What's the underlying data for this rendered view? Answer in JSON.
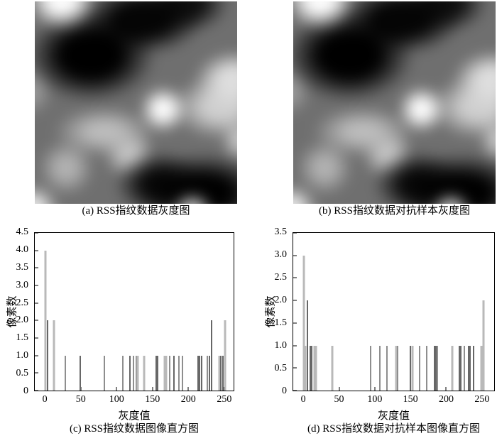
{
  "colors": {
    "background": "#ffffff",
    "axis": "#000000",
    "text": "#000000",
    "bar_light": "#b9b9b9",
    "bar_mid": "#8e8e8e",
    "bar_dark": "#676767"
  },
  "panels": {
    "a": {
      "type": "grayscale-image",
      "caption": "(a) RSS指纹数据灰度图"
    },
    "b": {
      "type": "grayscale-image",
      "caption": "(b) RSS指纹数据对抗样本灰度图"
    },
    "c": {
      "type": "histogram",
      "caption": "(c) RSS指纹数据图像直方图"
    },
    "d": {
      "type": "histogram",
      "caption": "(d) RSS指纹数据对抗样本图像直方图"
    }
  },
  "chart_data": [
    {
      "id": "c",
      "type": "bar",
      "title": "(c) RSS指纹数据图像直方图",
      "xlabel": "灰度值",
      "ylabel": "像素数",
      "xlim": [
        -15,
        264
      ],
      "ylim": [
        0,
        4.5
      ],
      "xticks": [
        0,
        50,
        100,
        150,
        200,
        250
      ],
      "yticks": [
        "0",
        "0.5",
        "1.0",
        "1.5",
        "2.0",
        "2.5",
        "3.0",
        "3.5",
        "4.0",
        "4.5"
      ],
      "grid": false,
      "legend": null,
      "bars": [
        {
          "x": 0,
          "count": 4.0,
          "shade": "light"
        },
        {
          "x": 3,
          "count": 2.0,
          "shade": "dark"
        },
        {
          "x": 12,
          "count": 2.0,
          "shade": "light"
        },
        {
          "x": 28,
          "count": 1.0,
          "shade": "mid"
        },
        {
          "x": 49,
          "count": 1.0,
          "shade": "dark"
        },
        {
          "x": 83,
          "count": 1.0,
          "shade": "mid"
        },
        {
          "x": 109,
          "count": 1.0,
          "shade": "mid"
        },
        {
          "x": 119,
          "count": 1.0,
          "shade": "dark"
        },
        {
          "x": 124,
          "count": 1.0,
          "shade": "mid"
        },
        {
          "x": 127,
          "count": 1.0,
          "shade": "mid"
        },
        {
          "x": 129,
          "count": 1.0,
          "shade": "light"
        },
        {
          "x": 138,
          "count": 1.0,
          "shade": "light"
        },
        {
          "x": 155,
          "count": 1.0,
          "shade": "dark"
        },
        {
          "x": 157,
          "count": 1.0,
          "shade": "dark"
        },
        {
          "x": 167,
          "count": 1.0,
          "shade": "light"
        },
        {
          "x": 169,
          "count": 1.0,
          "shade": "light"
        },
        {
          "x": 174,
          "count": 1.0,
          "shade": "mid"
        },
        {
          "x": 180,
          "count": 1.0,
          "shade": "dark"
        },
        {
          "x": 187,
          "count": 1.0,
          "shade": "mid"
        },
        {
          "x": 192,
          "count": 1.0,
          "shade": "mid"
        },
        {
          "x": 214,
          "count": 1.0,
          "shade": "dark"
        },
        {
          "x": 216,
          "count": 1.0,
          "shade": "dark"
        },
        {
          "x": 219,
          "count": 1.0,
          "shade": "dark"
        },
        {
          "x": 227,
          "count": 1.0,
          "shade": "mid"
        },
        {
          "x": 230,
          "count": 1.0,
          "shade": "dark"
        },
        {
          "x": 233,
          "count": 2.0,
          "shade": "dark"
        },
        {
          "x": 244,
          "count": 1.0,
          "shade": "light"
        },
        {
          "x": 246,
          "count": 1.0,
          "shade": "dark"
        },
        {
          "x": 249,
          "count": 1.0,
          "shade": "dark"
        },
        {
          "x": 252,
          "count": 2.0,
          "shade": "light"
        }
      ]
    },
    {
      "id": "d",
      "type": "bar",
      "title": "(d) RSS指纹数据对抗样本图像直方图",
      "xlabel": "灰度值",
      "ylabel": "像素数",
      "xlim": [
        -15,
        268
      ],
      "ylim": [
        0,
        3.5
      ],
      "xticks": [
        0,
        50,
        100,
        150,
        200,
        250
      ],
      "yticks": [
        "0",
        "0.5",
        "1.0",
        "1.5",
        "2.0",
        "2.5",
        "3.0",
        "3.5"
      ],
      "grid": false,
      "legend": null,
      "bars": [
        {
          "x": 0,
          "count": 3.0,
          "shade": "light"
        },
        {
          "x": 2,
          "count": 1.0,
          "shade": "light"
        },
        {
          "x": 5,
          "count": 2.0,
          "shade": "dark"
        },
        {
          "x": 9,
          "count": 1.0,
          "shade": "dark"
        },
        {
          "x": 11,
          "count": 1.0,
          "shade": "dark"
        },
        {
          "x": 15,
          "count": 1.0,
          "shade": "light"
        },
        {
          "x": 17,
          "count": 1.0,
          "shade": "light"
        },
        {
          "x": 40,
          "count": 1.0,
          "shade": "light"
        },
        {
          "x": 94,
          "count": 1.0,
          "shade": "mid"
        },
        {
          "x": 107,
          "count": 1.0,
          "shade": "mid"
        },
        {
          "x": 117,
          "count": 1.0,
          "shade": "mid"
        },
        {
          "x": 130,
          "count": 1.0,
          "shade": "light"
        },
        {
          "x": 132,
          "count": 1.0,
          "shade": "mid"
        },
        {
          "x": 150,
          "count": 1.0,
          "shade": "dark"
        },
        {
          "x": 153,
          "count": 1.0,
          "shade": "light"
        },
        {
          "x": 163,
          "count": 1.0,
          "shade": "mid"
        },
        {
          "x": 173,
          "count": 1.0,
          "shade": "mid"
        },
        {
          "x": 184,
          "count": 1.0,
          "shade": "dark"
        },
        {
          "x": 186,
          "count": 1.0,
          "shade": "dark"
        },
        {
          "x": 188,
          "count": 1.0,
          "shade": "mid"
        },
        {
          "x": 209,
          "count": 1.0,
          "shade": "light"
        },
        {
          "x": 219,
          "count": 1.0,
          "shade": "dark"
        },
        {
          "x": 221,
          "count": 1.0,
          "shade": "dark"
        },
        {
          "x": 226,
          "count": 1.0,
          "shade": "mid"
        },
        {
          "x": 232,
          "count": 1.0,
          "shade": "dark"
        },
        {
          "x": 234,
          "count": 1.0,
          "shade": "dark"
        },
        {
          "x": 239,
          "count": 1.0,
          "shade": "dark"
        },
        {
          "x": 250,
          "count": 1.0,
          "shade": "light"
        },
        {
          "x": 253,
          "count": 2.0,
          "shade": "light"
        }
      ]
    }
  ]
}
